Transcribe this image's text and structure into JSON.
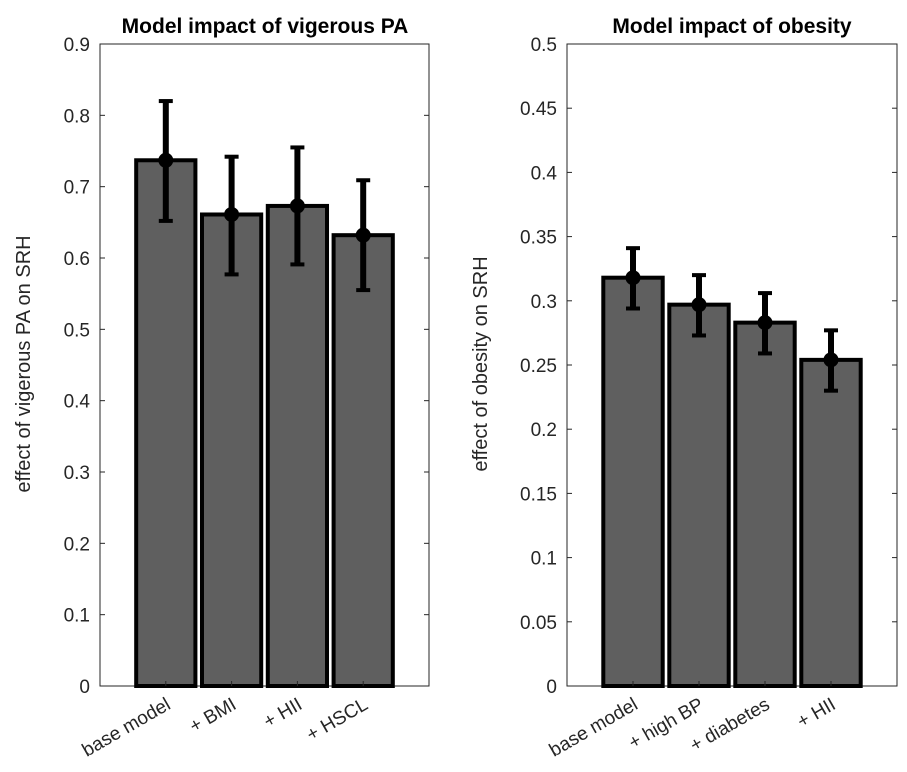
{
  "chart_data": [
    {
      "type": "bar",
      "title": "Model impact of vigerous PA",
      "xlabel": "",
      "ylabel": "effect of vigerous PA on SRH",
      "categories": [
        "base model",
        "+ BMI",
        "+ HII",
        "+ HSCL"
      ],
      "values": [
        0.737,
        0.661,
        0.673,
        0.632
      ],
      "error_low": [
        0.652,
        0.577,
        0.591,
        0.555
      ],
      "error_high": [
        0.82,
        0.742,
        0.755,
        0.709
      ],
      "ylim": [
        0,
        0.9
      ],
      "yticks": [
        "0",
        "0.1",
        "0.2",
        "0.3",
        "0.4",
        "0.5",
        "0.6",
        "0.7",
        "0.8",
        "0.9"
      ],
      "grid": false,
      "bar_color": "#5f5f5f",
      "edge_color": "#000000"
    },
    {
      "type": "bar",
      "title": "Model impact of obesity",
      "xlabel": "",
      "ylabel": "effect of obesity on SRH",
      "categories": [
        "base model",
        "+ high BP",
        "+ diabetes",
        "+ HII"
      ],
      "values": [
        0.318,
        0.297,
        0.283,
        0.254
      ],
      "error_low": [
        0.294,
        0.273,
        0.259,
        0.23
      ],
      "error_high": [
        0.341,
        0.32,
        0.306,
        0.277
      ],
      "ylim": [
        0,
        0.5
      ],
      "yticks": [
        "0",
        "0.05",
        "0.1",
        "0.15",
        "0.2",
        "0.25",
        "0.3",
        "0.35",
        "0.4",
        "0.45",
        "0.5"
      ],
      "grid": false,
      "bar_color": "#5f5f5f",
      "edge_color": "#000000"
    }
  ]
}
